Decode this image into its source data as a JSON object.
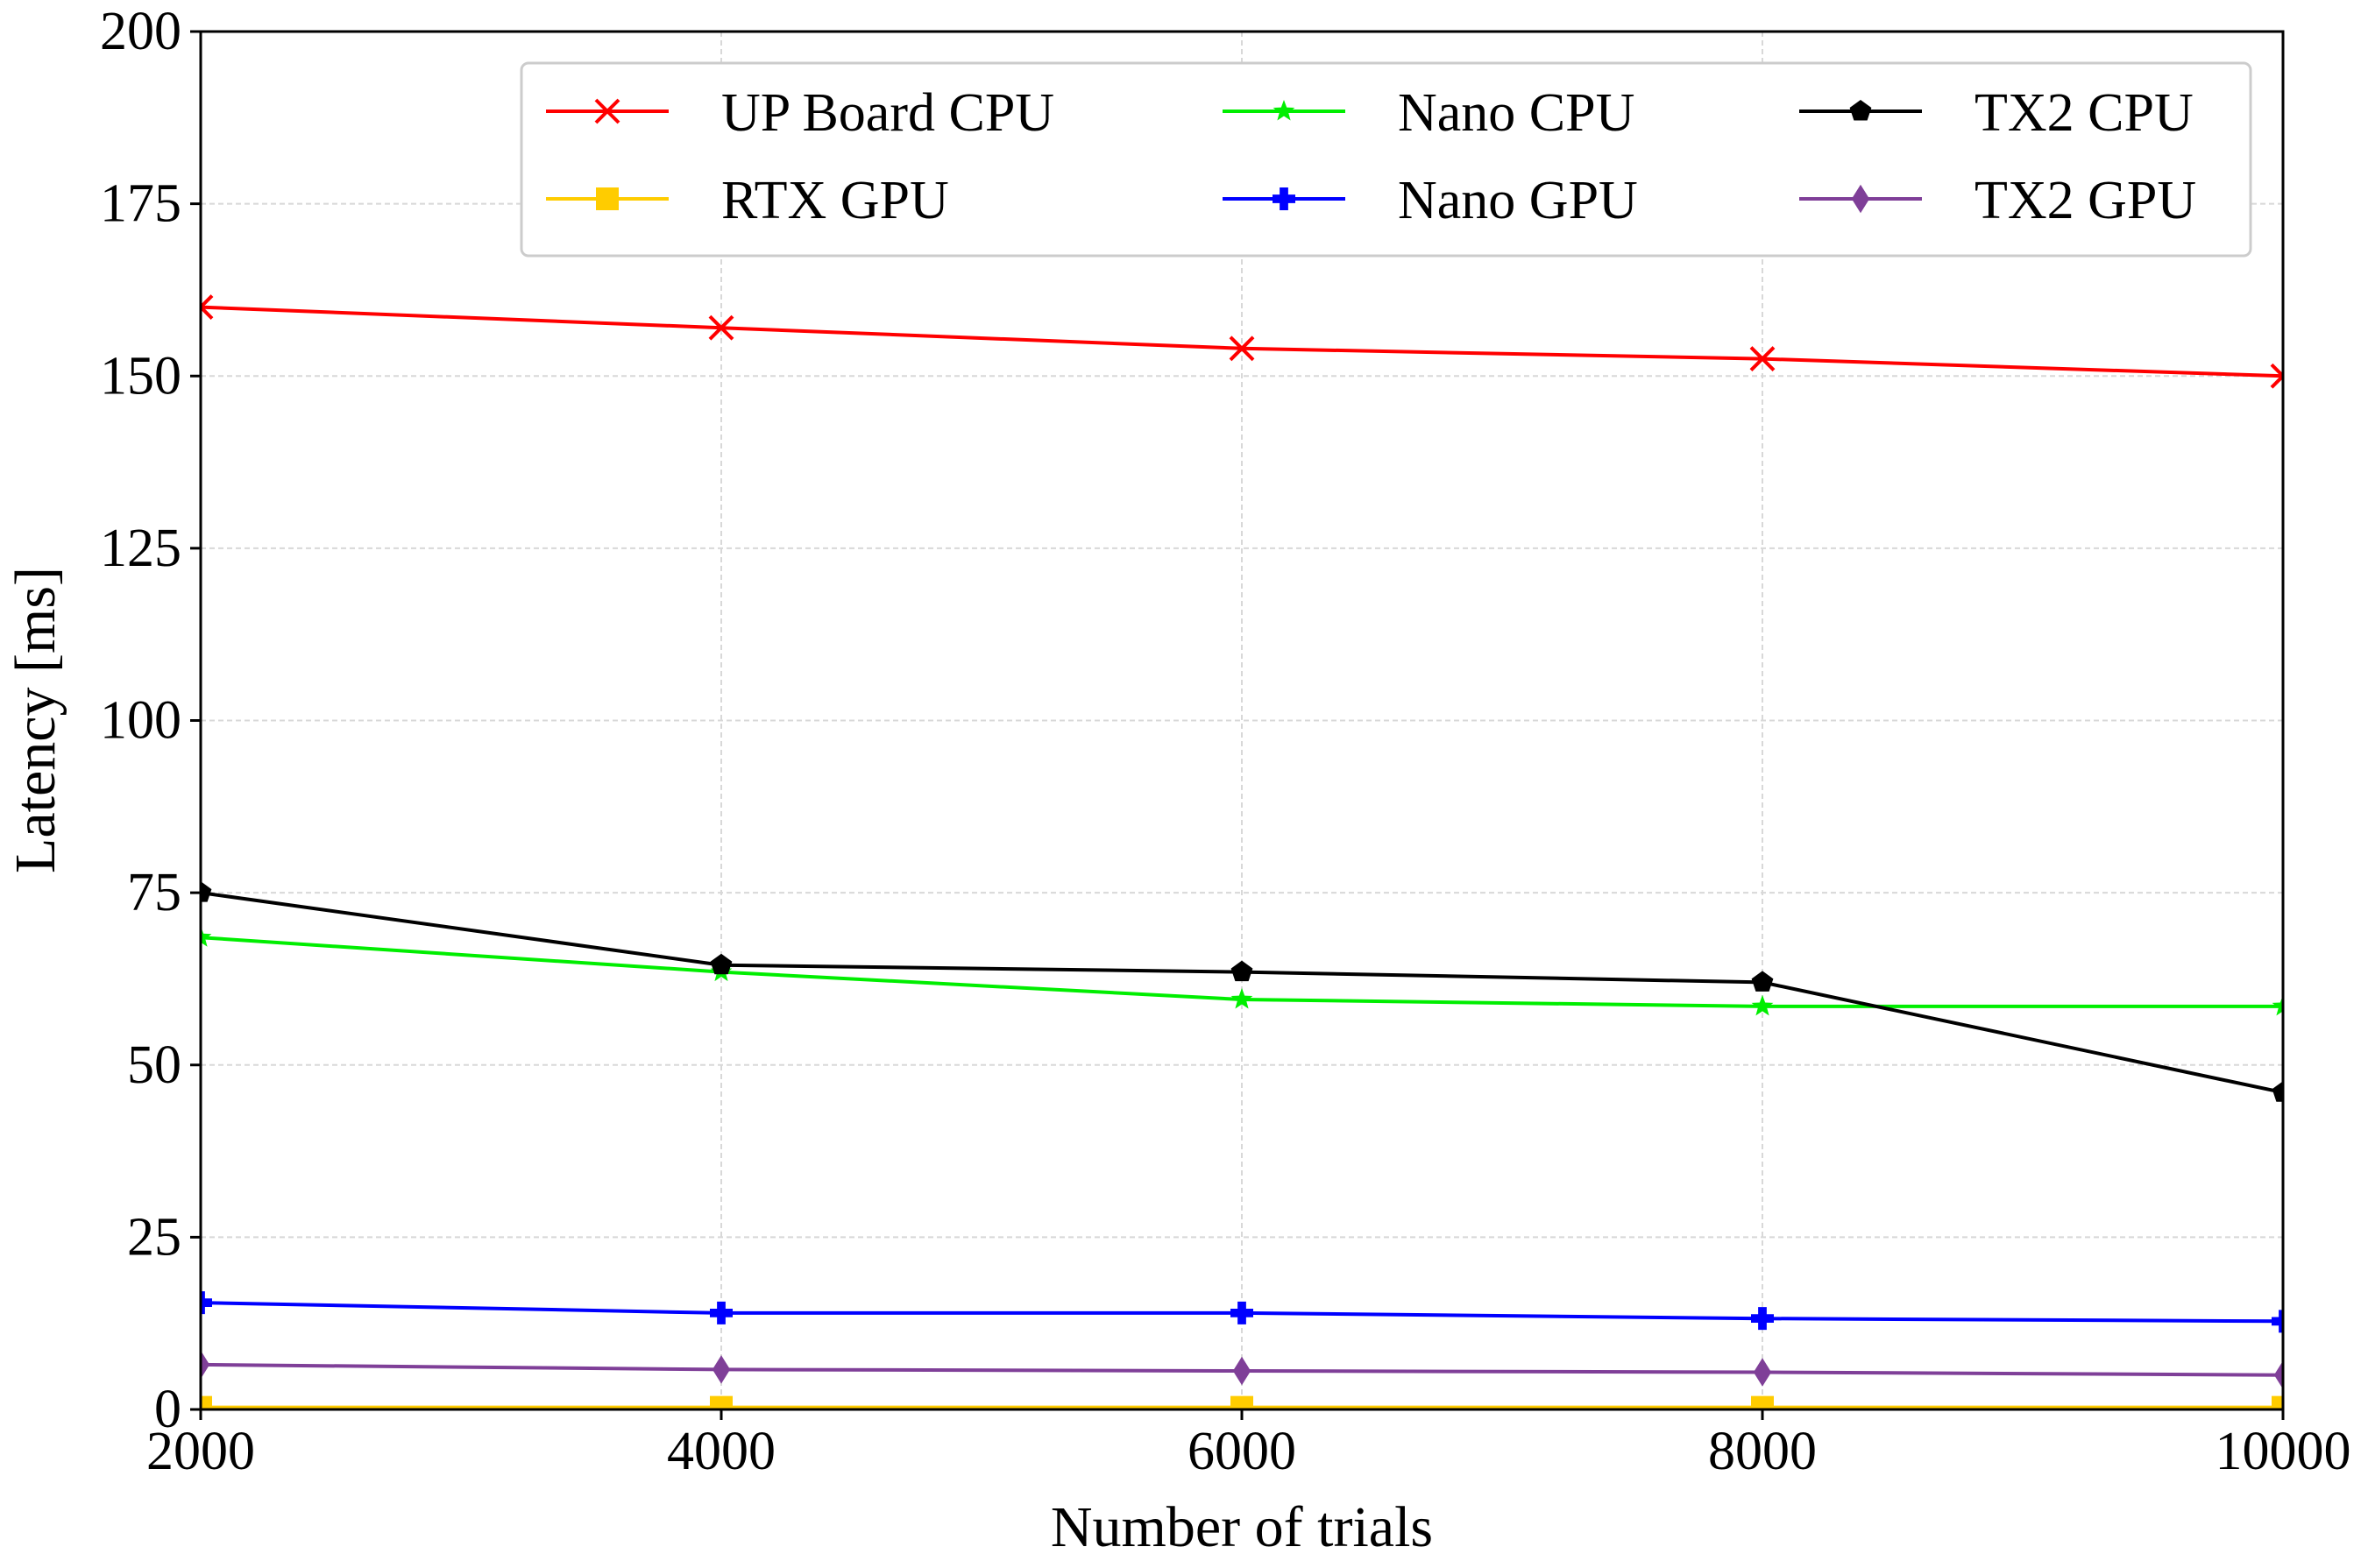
{
  "chart_data": {
    "type": "line",
    "title": "",
    "xlabel": "Number of trials",
    "ylabel": "Latency [ms]",
    "x": [
      2000,
      4000,
      6000,
      8000,
      10000
    ],
    "xlim": [
      2000,
      10000
    ],
    "ylim": [
      0,
      200
    ],
    "xticks": [
      2000,
      4000,
      6000,
      8000,
      10000
    ],
    "yticks": [
      0,
      25,
      50,
      75,
      100,
      125,
      150,
      175,
      200
    ],
    "grid": true,
    "legend_position": "top-right",
    "series": [
      {
        "name": "UP Board CPU",
        "color": "#ff0000",
        "marker": "x",
        "values": [
          160,
          157,
          154,
          152.5,
          150
        ]
      },
      {
        "name": "RTX GPU",
        "color": "#ffcc00",
        "marker": "square",
        "values": [
          0.3,
          0.3,
          0.3,
          0.3,
          0.3
        ]
      },
      {
        "name": "Nano CPU",
        "color": "#00ee00",
        "marker": "star",
        "values": [
          68.5,
          63.5,
          59.5,
          58.5,
          58.5
        ]
      },
      {
        "name": "Nano GPU",
        "color": "#0000ff",
        "marker": "plus",
        "values": [
          15.5,
          14,
          14,
          13.2,
          12.8
        ]
      },
      {
        "name": "TX2 CPU",
        "color": "#000000",
        "marker": "pentagon",
        "values": [
          75,
          64.5,
          63.5,
          62,
          46
        ]
      },
      {
        "name": "TX2 GPU",
        "color": "#7f3f98",
        "marker": "diamond",
        "values": [
          6.5,
          5.8,
          5.6,
          5.4,
          5
        ]
      }
    ]
  }
}
